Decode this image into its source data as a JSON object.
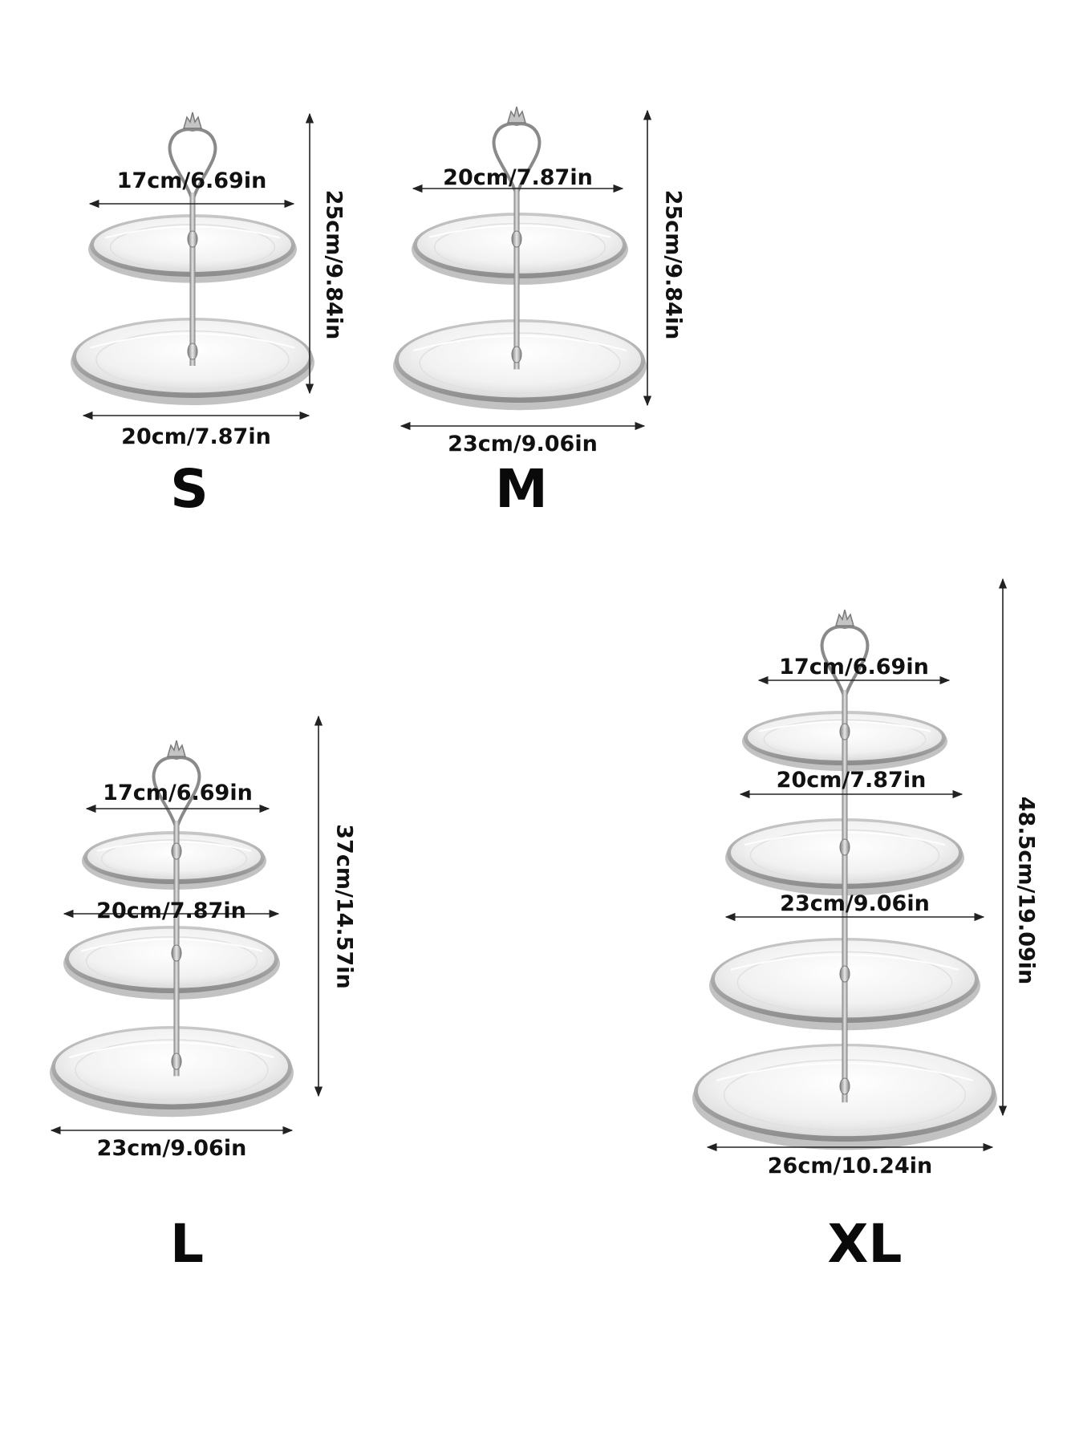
{
  "stands": [
    {
      "size": "S",
      "height_label": "25cm/9.84in",
      "tier_labels": [
        "17cm/6.69in",
        "20cm/7.87in"
      ]
    },
    {
      "size": "M",
      "height_label": "25cm/9.84in",
      "tier_labels": [
        "20cm/7.87in",
        "23cm/9.06in"
      ]
    },
    {
      "size": "L",
      "height_label": "37cm/14.57in",
      "tier_labels": [
        "17cm/6.69in",
        "20cm/7.87in",
        "23cm/9.06in"
      ]
    },
    {
      "size": "XL",
      "height_label": "48.5cm/19.09in",
      "tier_labels": [
        "17cm/6.69in",
        "20cm/7.87in",
        "23cm/9.06in",
        "26cm/10.24in"
      ]
    }
  ],
  "colors": {
    "plate_rim": "#a9a9a9",
    "plate_face": "#f3f3f3",
    "rod": "#9a9a9a",
    "text": "#111111"
  }
}
